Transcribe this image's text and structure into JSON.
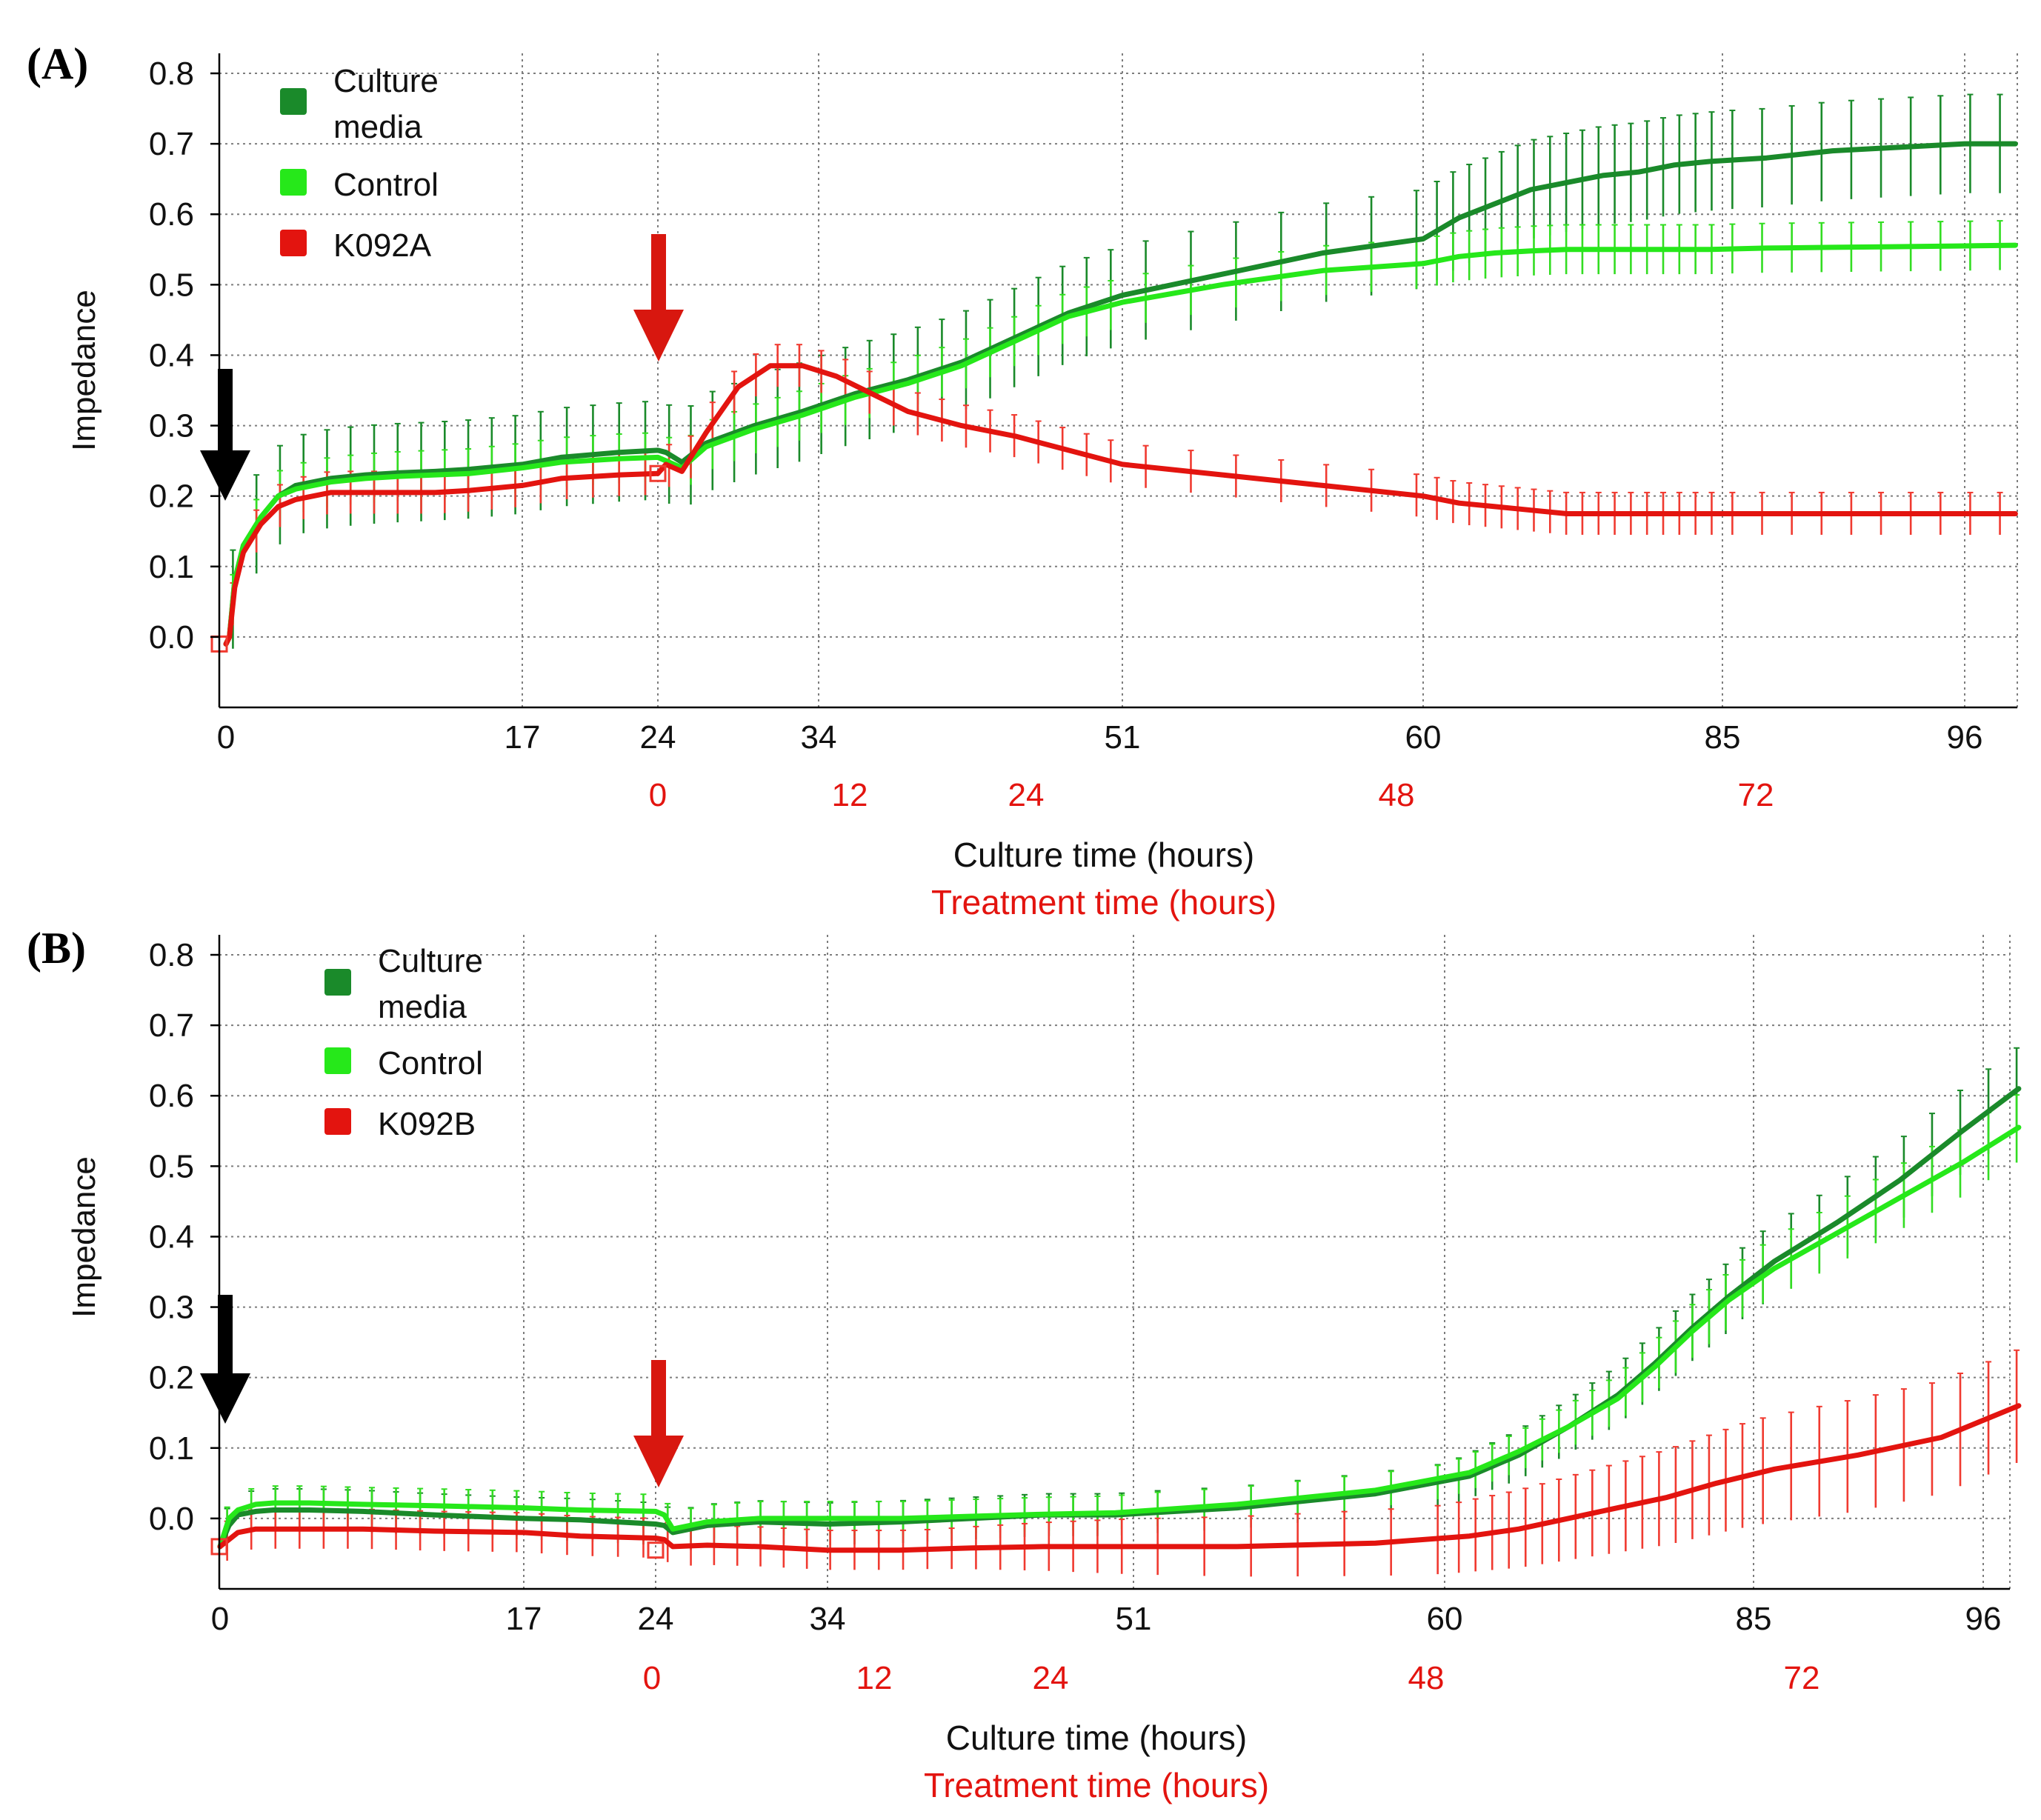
{
  "colors": {
    "culture_media": "#1a8a2a",
    "control": "#26e81a",
    "k092": "#e3140f",
    "control_err": "#33dd22",
    "k092_err": "#f03a30",
    "treatment_text": "#e3140f",
    "arrow_black": "#000000",
    "arrow_red": "#d8170f"
  },
  "chart_data": [
    {
      "panel": "(A)",
      "type": "line",
      "ylabel": "Impedance",
      "xlabel": "Culture time (hours)",
      "xlabel2": "Treatment time (hours)",
      "yticks": [
        "0.0",
        "0.1",
        "0.2",
        "0.3",
        "0.4",
        "0.5",
        "0.6",
        "0.7",
        "0.8"
      ],
      "ylim": [
        -0.1,
        0.82
      ],
      "xticks": [
        "0",
        "17",
        "24",
        "34",
        "51",
        "60",
        "85",
        "96"
      ],
      "treatment_ticks": [
        "0",
        "12",
        "24",
        "48",
        "72"
      ],
      "legend": [
        "Culture\nmedia",
        "Control",
        "K092A"
      ],
      "grid": true,
      "series": [
        {
          "name": "Culture media",
          "color_key": "culture_media",
          "x": [
            0,
            0.2,
            0.5,
            1,
            2,
            3,
            4,
            6,
            8,
            10,
            12,
            14,
            17,
            19,
            22,
            24,
            24.5,
            25.5,
            27,
            30,
            33,
            36,
            39,
            42,
            45,
            48,
            51,
            54,
            57,
            60,
            63,
            66,
            69,
            72,
            75,
            78,
            81,
            84,
            87,
            90,
            93,
            96,
            98.3
          ],
          "y": [
            -0.01,
            0.0,
            0.08,
            0.13,
            0.17,
            0.2,
            0.215,
            0.225,
            0.23,
            0.233,
            0.235,
            0.238,
            0.245,
            0.255,
            0.262,
            0.265,
            0.262,
            0.248,
            0.275,
            0.3,
            0.32,
            0.345,
            0.365,
            0.39,
            0.425,
            0.46,
            0.485,
            0.515,
            0.545,
            0.565,
            0.595,
            0.615,
            0.635,
            0.645,
            0.655,
            0.66,
            0.67,
            0.675,
            0.68,
            0.69,
            0.695,
            0.7,
            0.7
          ],
          "err": 0.07
        },
        {
          "name": "Control",
          "color_key": "control",
          "x": [
            0,
            0.2,
            0.5,
            1,
            2,
            3,
            4,
            6,
            8,
            10,
            12,
            14,
            17,
            19,
            22,
            24,
            24.5,
            25.5,
            27,
            30,
            33,
            36,
            39,
            42,
            45,
            48,
            51,
            54,
            57,
            60,
            63,
            66,
            69,
            72,
            75,
            78,
            81,
            84,
            87,
            90,
            93,
            96,
            98.3
          ],
          "y": [
            -0.01,
            0.0,
            0.08,
            0.13,
            0.17,
            0.2,
            0.21,
            0.22,
            0.225,
            0.228,
            0.23,
            0.232,
            0.24,
            0.248,
            0.253,
            0.255,
            0.25,
            0.24,
            0.27,
            0.295,
            0.315,
            0.34,
            0.36,
            0.385,
            0.42,
            0.455,
            0.475,
            0.5,
            0.52,
            0.53,
            0.54,
            0.545,
            0.548,
            0.55,
            0.55,
            0.55,
            0.55,
            0.55,
            0.552,
            0.553,
            0.554,
            0.555,
            0.556
          ],
          "err": 0.035
        },
        {
          "name": "K092A",
          "color_key": "k092",
          "x": [
            0,
            0.2,
            0.5,
            1,
            2,
            3,
            4,
            6,
            8,
            10,
            12,
            14,
            17,
            19,
            22,
            24,
            24.5,
            25.5,
            27,
            29,
            31,
            33,
            35,
            37,
            39,
            42,
            45,
            48,
            51,
            54,
            57,
            60,
            63,
            66,
            69,
            72,
            75,
            78,
            81,
            84,
            87,
            90,
            93,
            96,
            98.3
          ],
          "y": [
            -0.01,
            0.0,
            0.07,
            0.12,
            0.16,
            0.185,
            0.195,
            0.205,
            0.205,
            0.205,
            0.205,
            0.208,
            0.215,
            0.225,
            0.23,
            0.232,
            0.245,
            0.235,
            0.29,
            0.355,
            0.385,
            0.385,
            0.37,
            0.345,
            0.32,
            0.3,
            0.285,
            0.265,
            0.245,
            0.23,
            0.215,
            0.2,
            0.19,
            0.185,
            0.18,
            0.175,
            0.175,
            0.175,
            0.175,
            0.175,
            0.175,
            0.175,
            0.175,
            0.175,
            0.175
          ],
          "err": 0.03
        }
      ],
      "annotations": [
        "black arrow at 0 h (cell seeding)",
        "red arrow at 24 h (treatment start)"
      ]
    },
    {
      "panel": "(B)",
      "type": "line",
      "ylabel": "Impedance",
      "xlabel": "Culture time (hours)",
      "xlabel2": "Treatment time (hours)",
      "yticks": [
        "0.0",
        "0.1",
        "0.2",
        "0.3",
        "0.4",
        "0.5",
        "0.6",
        "0.7",
        "0.8"
      ],
      "ylim": [
        -0.1,
        0.82
      ],
      "xticks": [
        "0",
        "17",
        "24",
        "34",
        "51",
        "60",
        "85",
        "96"
      ],
      "treatment_ticks": [
        "0",
        "12",
        "24",
        "48",
        "72"
      ],
      "legend": [
        "Culture\nmedia",
        "Control",
        "K092B"
      ],
      "grid": true,
      "series": [
        {
          "name": "Culture media",
          "color_key": "culture_media",
          "x": [
            0,
            0.5,
            1,
            2,
            3,
            5,
            8,
            12,
            17,
            20,
            24,
            24.5,
            25,
            27,
            30,
            34,
            38,
            42,
            46,
            50,
            54,
            58,
            62,
            66,
            70,
            74,
            77,
            80,
            83,
            86,
            89,
            92,
            95,
            97.7
          ],
          "y": [
            -0.04,
            -0.01,
            0.005,
            0.01,
            0.012,
            0.012,
            0.01,
            0.005,
            0.0,
            -0.002,
            -0.008,
            -0.01,
            -0.02,
            -0.01,
            -0.005,
            -0.008,
            -0.005,
            0.0,
            0.005,
            0.005,
            0.015,
            0.035,
            0.06,
            0.09,
            0.13,
            0.175,
            0.22,
            0.27,
            0.315,
            0.365,
            0.42,
            0.48,
            0.55,
            0.61
          ],
          "err": 0.05
        },
        {
          "name": "Control",
          "color_key": "control",
          "x": [
            0,
            0.5,
            1,
            2,
            3,
            5,
            8,
            12,
            17,
            20,
            24,
            24.5,
            25,
            27,
            30,
            34,
            38,
            42,
            46,
            50,
            54,
            58,
            62,
            66,
            70,
            74,
            77,
            80,
            83,
            86,
            89,
            92,
            95,
            97.7
          ],
          "y": [
            -0.04,
            0.0,
            0.012,
            0.02,
            0.022,
            0.022,
            0.02,
            0.018,
            0.015,
            0.012,
            0.01,
            0.005,
            -0.015,
            -0.005,
            0.0,
            0.0,
            0.0,
            0.003,
            0.006,
            0.008,
            0.02,
            0.04,
            0.065,
            0.095,
            0.13,
            0.17,
            0.215,
            0.265,
            0.31,
            0.355,
            0.405,
            0.455,
            0.505,
            0.555
          ],
          "err": 0.04
        },
        {
          "name": "K092B",
          "color_key": "k092",
          "x": [
            0,
            0.5,
            1,
            2,
            4,
            8,
            12,
            17,
            20,
            24,
            24.5,
            25,
            27,
            30,
            34,
            38,
            42,
            46,
            50,
            54,
            58,
            62,
            66,
            70,
            74,
            78,
            82,
            86,
            90,
            94,
            97.7
          ],
          "y": [
            -0.04,
            -0.03,
            -0.02,
            -0.015,
            -0.015,
            -0.015,
            -0.018,
            -0.02,
            -0.025,
            -0.028,
            -0.03,
            -0.04,
            -0.038,
            -0.04,
            -0.045,
            -0.045,
            -0.042,
            -0.04,
            -0.04,
            -0.04,
            -0.035,
            -0.025,
            -0.015,
            0.0,
            0.015,
            0.03,
            0.05,
            0.07,
            0.09,
            0.115,
            0.16
          ],
          "err": 0.08
        }
      ],
      "annotations": [
        "black arrow at 0 h (cell seeding)",
        "red arrow at 24 h (treatment start)"
      ]
    }
  ]
}
